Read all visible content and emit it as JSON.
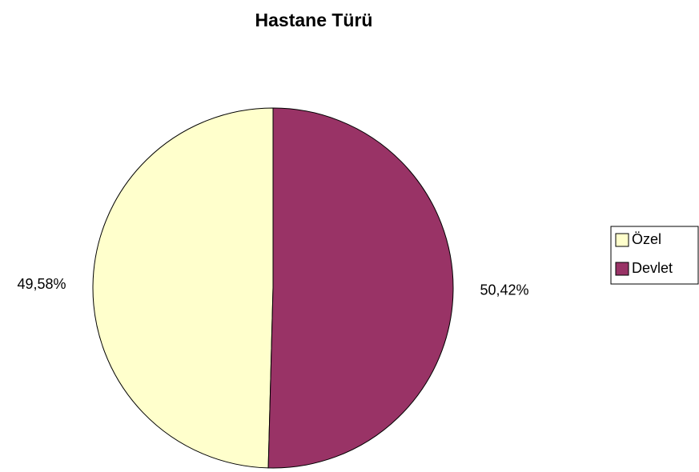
{
  "chart_data": {
    "type": "pie",
    "title": "Hastane Türü",
    "categories": [
      "Özel",
      "Devlet"
    ],
    "values": [
      49.58,
      50.42
    ],
    "value_labels": [
      "49,58%",
      "50,42%"
    ],
    "colors": [
      "#ffffcc",
      "#993366"
    ],
    "legend": "right"
  }
}
